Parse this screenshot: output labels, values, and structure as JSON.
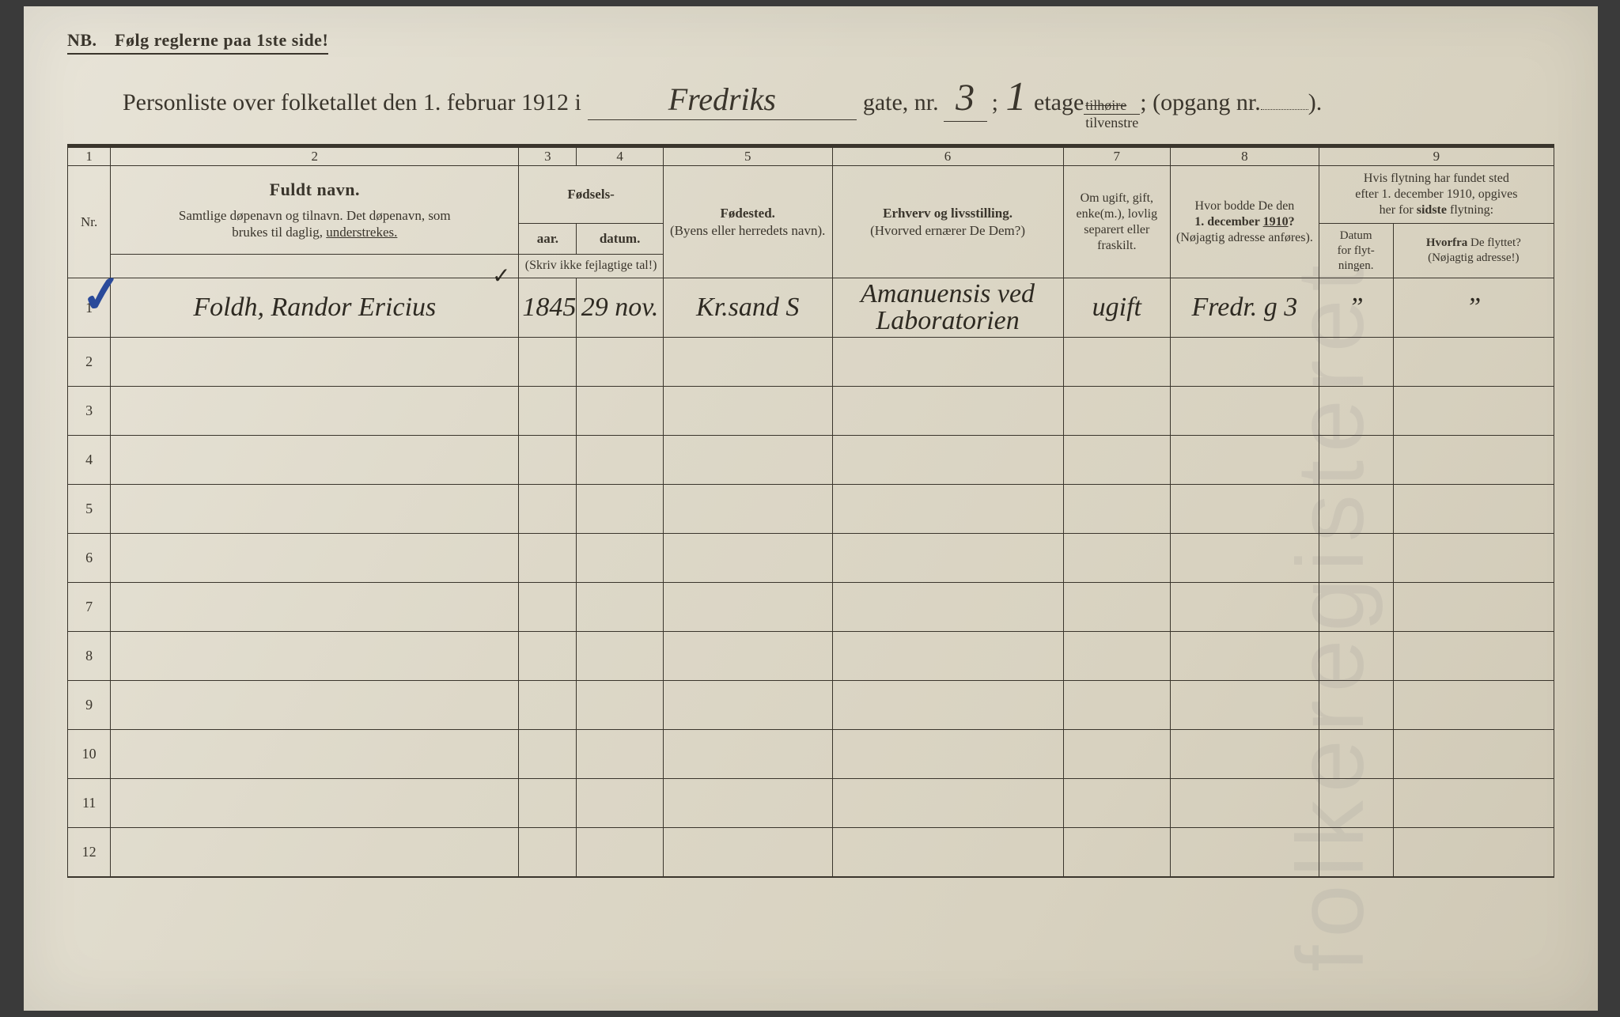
{
  "nb_text": "NB. Følg reglerne paa 1ste side!",
  "title": {
    "prefix": "Personliste over folketallet den 1. februar 1912 i",
    "street_hand": "Fredriks",
    "gate_label": "gate, nr.",
    "house_nr_hand": "3",
    "semicolon": ";",
    "etage_nr_hand": "1",
    "etage_label": "etage",
    "side_top": "tilhøire",
    "side_bot": "tilvenstre",
    "opgang_label": "; (opgang nr.",
    "opgang_close": ").",
    "opgang_fill": ""
  },
  "colnums": [
    "1",
    "2",
    "3",
    "4",
    "5",
    "6",
    "7",
    "8",
    "9"
  ],
  "headers": {
    "nr": "Nr.",
    "name_big": "Fuldt navn.",
    "name_sub": "Samtlige døpenavn og tilnavn. Det døpenavn, som brukes til daglig, understrekes.",
    "birth_top": "Fødsels-",
    "birth_year": "aar.",
    "birth_date": "datum.",
    "birth_note": "(Skriv ikke fejlagtige tal!)",
    "birthplace": "Fødested.",
    "birthplace_sub": "(Byens eller herredets navn).",
    "occ": "Erhverv og livsstilling.",
    "occ_sub": "(Hvorved ernærer De Dem?)",
    "marital": "Om ugift, gift, enke(m.), lovlig separert eller fraskilt.",
    "prev_addr": "Hvor bodde De den 1. december 1910?",
    "prev_addr_sub": "(Nøjagtig adresse anføres).",
    "move_top": "Hvis flytning har fundet sted efter 1. december 1910, opgives her for sidste flytning:",
    "move_date": "Datum for flyt-ningen.",
    "move_from": "Hvorfra De flyttet?",
    "move_from_sub": "(Nøjagtig adresse!)"
  },
  "rows": [
    {
      "nr": "1",
      "name": "Foldh, Randor Ericius",
      "year": "1845",
      "date": "29 nov.",
      "birthplace": "Kr.sand S",
      "occupation": "Amanuensis ved Laboratorien",
      "marital": "ugift",
      "prev_addr": "Fredr. g 3",
      "move_date": "”",
      "move_from": "”"
    },
    {
      "nr": "2",
      "name": "",
      "year": "",
      "date": "",
      "birthplace": "",
      "occupation": "",
      "marital": "",
      "prev_addr": "",
      "move_date": "",
      "move_from": ""
    },
    {
      "nr": "3",
      "name": "",
      "year": "",
      "date": "",
      "birthplace": "",
      "occupation": "",
      "marital": "",
      "prev_addr": "",
      "move_date": "",
      "move_from": ""
    },
    {
      "nr": "4",
      "name": "",
      "year": "",
      "date": "",
      "birthplace": "",
      "occupation": "",
      "marital": "",
      "prev_addr": "",
      "move_date": "",
      "move_from": ""
    },
    {
      "nr": "5",
      "name": "",
      "year": "",
      "date": "",
      "birthplace": "",
      "occupation": "",
      "marital": "",
      "prev_addr": "",
      "move_date": "",
      "move_from": ""
    },
    {
      "nr": "6",
      "name": "",
      "year": "",
      "date": "",
      "birthplace": "",
      "occupation": "",
      "marital": "",
      "prev_addr": "",
      "move_date": "",
      "move_from": ""
    },
    {
      "nr": "7",
      "name": "",
      "year": "",
      "date": "",
      "birthplace": "",
      "occupation": "",
      "marital": "",
      "prev_addr": "",
      "move_date": "",
      "move_from": ""
    },
    {
      "nr": "8",
      "name": "",
      "year": "",
      "date": "",
      "birthplace": "",
      "occupation": "",
      "marital": "",
      "prev_addr": "",
      "move_date": "",
      "move_from": ""
    },
    {
      "nr": "9",
      "name": "",
      "year": "",
      "date": "",
      "birthplace": "",
      "occupation": "",
      "marital": "",
      "prev_addr": "",
      "move_date": "",
      "move_from": ""
    },
    {
      "nr": "10",
      "name": "",
      "year": "",
      "date": "",
      "birthplace": "",
      "occupation": "",
      "marital": "",
      "prev_addr": "",
      "move_date": "",
      "move_from": ""
    },
    {
      "nr": "11",
      "name": "",
      "year": "",
      "date": "",
      "birthplace": "",
      "occupation": "",
      "marital": "",
      "prev_addr": "",
      "move_date": "",
      "move_from": ""
    },
    {
      "nr": "12",
      "name": "",
      "year": "",
      "date": "",
      "birthplace": "",
      "occupation": "",
      "marital": "",
      "prev_addr": "",
      "move_date": "",
      "move_from": ""
    }
  ],
  "colors": {
    "paper": "#ddd8c8",
    "ink": "#3a352c",
    "blue_pencil": "#2a4a9a"
  }
}
